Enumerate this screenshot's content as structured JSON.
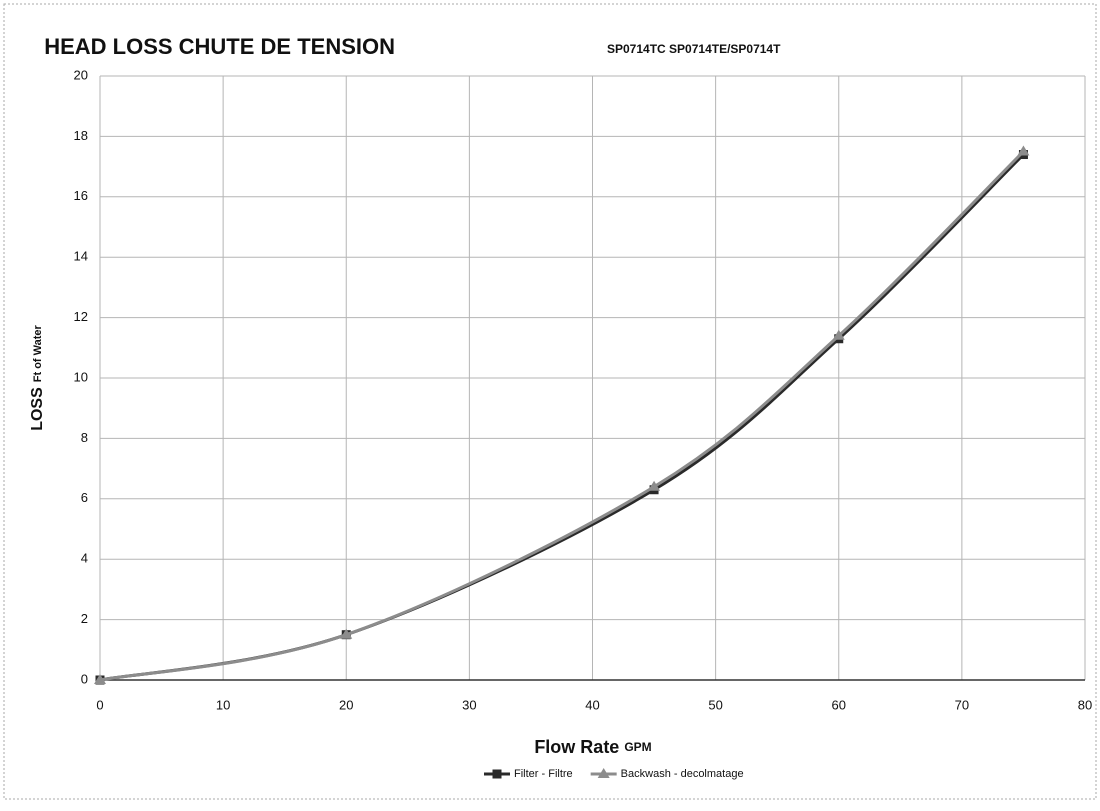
{
  "chart_data": {
    "type": "line",
    "title": "HEAD LOSS  CHUTE DE TENSION",
    "subtitle": "SP0714TC SP0714TE/SP0714T",
    "y_label": "LOSS",
    "y_label_unit": "Ft of Water",
    "x_label": "Flow Rate",
    "x_label_unit": "GPM",
    "x": [
      0,
      20,
      45,
      60,
      75
    ],
    "series": [
      {
        "name": "Filter - Filtre",
        "color": "#2a2a2a",
        "marker": "square",
        "values": [
          0,
          1.5,
          6.3,
          11.3,
          17.4
        ]
      },
      {
        "name": "Backwash - decolmatage",
        "color": "#8c8c8c",
        "marker": "triangle",
        "values": [
          0,
          1.5,
          6.4,
          11.4,
          17.5
        ]
      }
    ],
    "xlim": [
      0,
      80
    ],
    "xticks": [
      0,
      10,
      20,
      30,
      40,
      50,
      60,
      70,
      80
    ],
    "ylim": [
      0,
      20
    ],
    "yticks": [
      0,
      2,
      4,
      6,
      8,
      10,
      12,
      14,
      16,
      18,
      20
    ],
    "grid": true,
    "legend": "bottom"
  }
}
